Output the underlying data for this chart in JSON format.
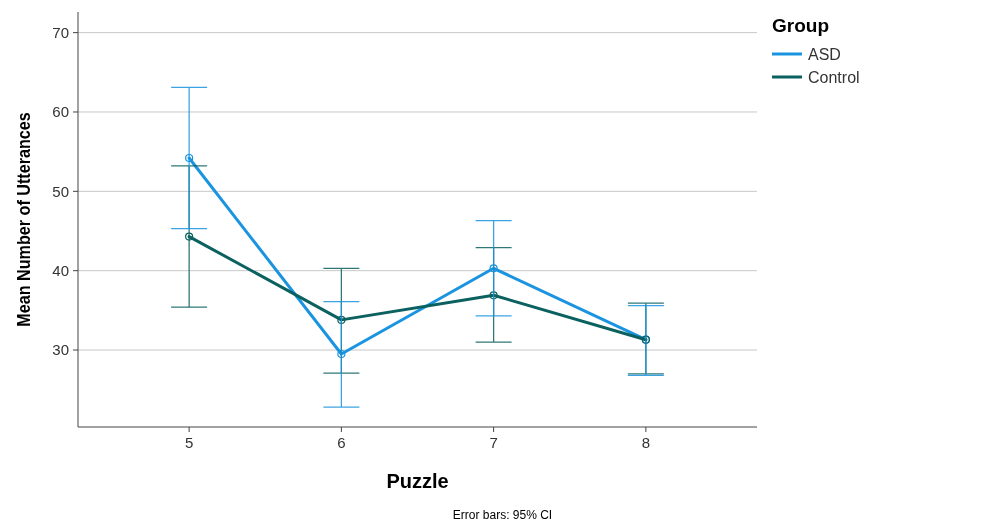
{
  "chart_data": {
    "type": "line",
    "xlabel": "Puzzle",
    "ylabel": "Mean Number of Utterances",
    "legend_title": "Group",
    "categories": [
      "5",
      "6",
      "7",
      "8"
    ],
    "series": [
      {
        "name": "ASD",
        "color": "#1a94e0",
        "values": [
          54.2,
          29.5,
          40.3,
          31.3
        ],
        "errors": [
          [
            45.3,
            63.1
          ],
          [
            22.8,
            36.1
          ],
          [
            34.3,
            46.3
          ],
          [
            26.8,
            35.6
          ]
        ]
      },
      {
        "name": "Control",
        "color": "#0b6060",
        "values": [
          44.3,
          33.8,
          36.9,
          31.3
        ],
        "errors": [
          [
            35.4,
            53.2
          ],
          [
            27.1,
            40.3
          ],
          [
            31.0,
            42.9
          ],
          [
            27.0,
            35.9
          ]
        ]
      }
    ],
    "ylim": [
      20.3,
      72.6
    ],
    "yticks": [
      30,
      40,
      50,
      60,
      70
    ],
    "grid": "y",
    "legend": "top right",
    "marker": "circle",
    "line_style": "solid",
    "annotations": [
      "Error bars: 95% CI"
    ]
  }
}
